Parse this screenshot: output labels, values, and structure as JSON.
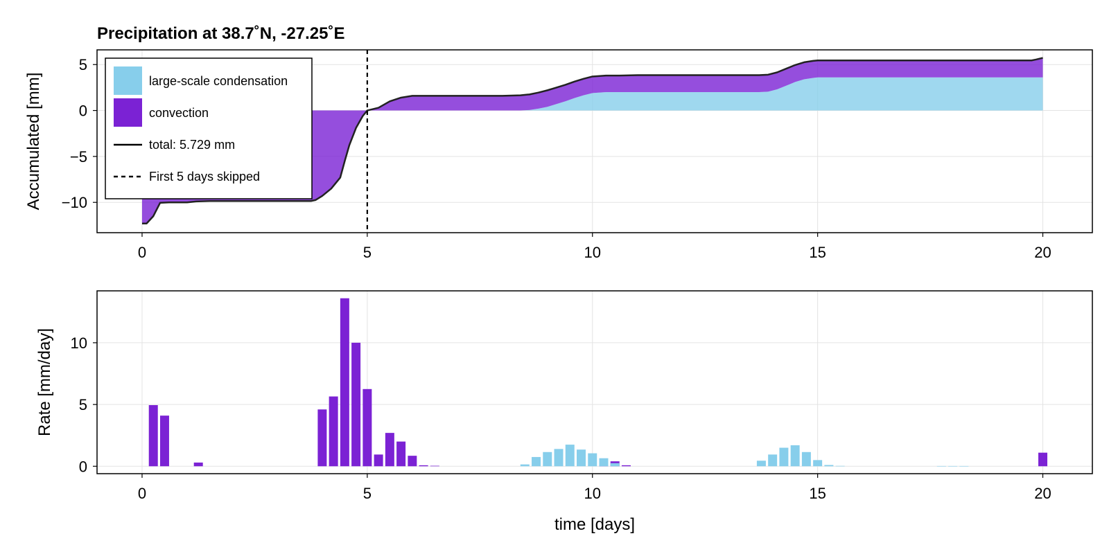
{
  "colors": {
    "lsc": "#87ceeb",
    "conv": "#7b22d4",
    "total": "#222222",
    "fill_opacity": 0.8
  },
  "chart_data": [
    {
      "type": "area",
      "title": "Precipitation at 38.7˚N, -27.25˚E",
      "xlabel": "",
      "ylabel": "Accumulated [mm]",
      "xlim": [
        -1,
        21.1
      ],
      "ylim": [
        -13.3,
        6.6
      ],
      "xticks": [
        "0",
        "5",
        "10",
        "15",
        "20"
      ],
      "yticks": [
        "5",
        "0",
        "−5",
        "−10"
      ],
      "ytick_values": [
        5,
        0,
        -5,
        -10
      ],
      "xtick_values": [
        0,
        5,
        10,
        15,
        20
      ],
      "vline_x": 5,
      "legend": {
        "position": "top-left",
        "entries": [
          "large-scale condensation",
          "convection",
          "total: 5.729 mm",
          "First 5 days skipped"
        ]
      },
      "x": [
        0,
        0.1,
        0.25,
        0.4,
        0.6,
        0.8,
        1.0,
        1.2,
        1.5,
        2.0,
        2.5,
        3.0,
        3.5,
        3.75,
        3.85,
        4.0,
        4.2,
        4.4,
        4.5,
        4.6,
        4.75,
        4.9,
        5.0,
        5.25,
        5.5,
        5.75,
        6.0,
        7.0,
        8.0,
        8.4,
        8.6,
        8.8,
        9.0,
        9.2,
        9.4,
        9.6,
        9.8,
        10.0,
        10.3,
        10.6,
        11.0,
        12.0,
        13.0,
        13.5,
        13.7,
        13.9,
        14.1,
        14.3,
        14.5,
        14.7,
        14.9,
        15.0,
        15.5,
        16.0,
        17.0,
        18.0,
        19.0,
        19.75,
        19.85,
        20.0
      ],
      "series": [
        {
          "name": "large-scale condensation",
          "values": [
            0,
            0,
            0,
            0,
            0,
            0,
            0,
            0,
            0,
            0,
            0,
            0,
            0,
            0,
            0,
            0,
            0,
            0,
            0,
            0,
            0,
            0,
            0,
            0,
            0,
            0,
            0,
            0,
            0,
            0,
            0.05,
            0.2,
            0.4,
            0.7,
            1.0,
            1.35,
            1.65,
            1.9,
            2.0,
            2.0,
            2.0,
            2.0,
            2.0,
            2.0,
            2.0,
            2.05,
            2.3,
            2.7,
            3.1,
            3.4,
            3.55,
            3.6,
            3.6,
            3.6,
            3.6,
            3.6,
            3.6,
            3.6,
            3.6,
            3.6
          ]
        },
        {
          "name": "convection",
          "values": [
            -12.3,
            -12.3,
            -11.5,
            -10.05,
            -10.0,
            -10.0,
            -10.0,
            -9.9,
            -9.85,
            -9.85,
            -9.85,
            -9.85,
            -9.85,
            -9.85,
            -9.75,
            -9.3,
            -8.5,
            -7.3,
            -5.5,
            -3.8,
            -1.9,
            -0.6,
            0,
            0.3,
            1.0,
            1.4,
            1.6,
            1.6,
            1.6,
            1.65,
            1.7,
            1.75,
            1.8,
            1.8,
            1.8,
            1.8,
            1.8,
            1.8,
            1.8,
            1.8,
            1.85,
            1.85,
            1.85,
            1.85,
            1.85,
            1.85,
            1.85,
            1.85,
            1.85,
            1.85,
            1.85,
            1.85,
            1.85,
            1.85,
            1.85,
            1.85,
            1.85,
            1.85,
            1.95,
            2.12
          ]
        },
        {
          "name": "total: 5.729 mm",
          "values": [
            -12.3,
            -12.3,
            -11.5,
            -10.05,
            -10.0,
            -10.0,
            -10.0,
            -9.9,
            -9.85,
            -9.85,
            -9.85,
            -9.85,
            -9.85,
            -9.85,
            -9.75,
            -9.3,
            -8.5,
            -7.3,
            -5.5,
            -3.8,
            -1.9,
            -0.6,
            0,
            0.3,
            1.0,
            1.4,
            1.6,
            1.6,
            1.6,
            1.65,
            1.75,
            1.95,
            2.2,
            2.5,
            2.8,
            3.15,
            3.45,
            3.7,
            3.8,
            3.8,
            3.85,
            3.85,
            3.85,
            3.85,
            3.85,
            3.9,
            4.15,
            4.55,
            4.95,
            5.25,
            5.4,
            5.45,
            5.45,
            5.45,
            5.45,
            5.45,
            5.45,
            5.45,
            5.55,
            5.729
          ]
        }
      ]
    },
    {
      "type": "bar",
      "title": "",
      "xlabel": "time [days]",
      "ylabel": "Rate [mm/day]",
      "xlim": [
        -1,
        21.1
      ],
      "ylim": [
        -0.6,
        14.2
      ],
      "xticks": [
        "0",
        "5",
        "10",
        "15",
        "20"
      ],
      "yticks": [
        "10",
        "5",
        "0"
      ],
      "ytick_values": [
        10,
        5,
        0
      ],
      "xtick_values": [
        0,
        5,
        10,
        15,
        20
      ],
      "bar_width": 0.2,
      "series": [
        {
          "name": "convection",
          "bars": [
            [
              0.25,
              4.95
            ],
            [
              0.5,
              4.1
            ],
            [
              1.25,
              0.3
            ],
            [
              4.0,
              4.6
            ],
            [
              4.25,
              5.65
            ],
            [
              4.5,
              13.6
            ],
            [
              4.75,
              10.0
            ],
            [
              5.0,
              6.25
            ],
            [
              5.25,
              0.95
            ],
            [
              5.5,
              2.7
            ],
            [
              5.75,
              2.0
            ],
            [
              6.0,
              0.85
            ],
            [
              6.25,
              0.08
            ],
            [
              6.5,
              0.04
            ],
            [
              10.25,
              0.5
            ],
            [
              10.5,
              0.4
            ],
            [
              10.75,
              0.08
            ],
            [
              20.0,
              1.1
            ]
          ]
        },
        {
          "name": "large-scale condensation",
          "bars": [
            [
              8.5,
              0.15
            ],
            [
              8.75,
              0.75
            ],
            [
              9.0,
              1.15
            ],
            [
              9.25,
              1.4
            ],
            [
              9.5,
              1.75
            ],
            [
              9.75,
              1.35
            ],
            [
              10.0,
              1.05
            ],
            [
              10.25,
              0.65
            ],
            [
              10.5,
              0.25
            ],
            [
              13.75,
              0.45
            ],
            [
              14.0,
              0.95
            ],
            [
              14.25,
              1.5
            ],
            [
              14.5,
              1.7
            ],
            [
              14.75,
              1.15
            ],
            [
              15.0,
              0.5
            ],
            [
              15.25,
              0.1
            ],
            [
              15.5,
              0.03
            ],
            [
              17.75,
              0.02
            ],
            [
              18.0,
              0.02
            ],
            [
              18.25,
              0.02
            ]
          ]
        }
      ]
    }
  ]
}
